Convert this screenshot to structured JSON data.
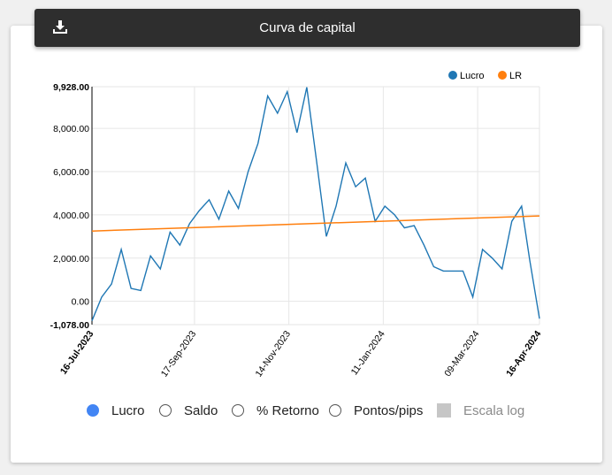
{
  "header": {
    "title": "Curva de capital",
    "download_icon": "download-icon"
  },
  "chart_data": {
    "type": "line",
    "legend": [
      "Lucro",
      "LR"
    ],
    "legend_placement": "top-right",
    "colors": {
      "Lucro": "#1f77b4",
      "LR": "#ff7f0e"
    },
    "y_ticks": [
      "9,928.00",
      "8,000.00",
      "6,000.00",
      "4,000.00",
      "2,000.00",
      "0.00",
      "-1,078.00"
    ],
    "ylim": [
      -1078,
      9928
    ],
    "x_ticks": [
      "16-Jul-2023",
      "17-Sep-2023",
      "14-Nov-2023",
      "11-Jan-2024",
      "09-Mar-2024",
      "16-Apr-2024"
    ],
    "xlim": [
      "2023-07-16",
      "2024-04-16"
    ],
    "grid": true,
    "series": [
      {
        "name": "Lucro",
        "x": [
          "2023-07-16",
          "2023-07-22",
          "2023-07-28",
          "2023-08-03",
          "2023-08-09",
          "2023-08-15",
          "2023-08-21",
          "2023-08-27",
          "2023-09-02",
          "2023-09-08",
          "2023-09-14",
          "2023-09-20",
          "2023-09-26",
          "2023-10-02",
          "2023-10-08",
          "2023-10-14",
          "2023-10-20",
          "2023-10-26",
          "2023-11-01",
          "2023-11-07",
          "2023-11-13",
          "2023-11-19",
          "2023-11-25",
          "2023-12-01",
          "2023-12-07",
          "2023-12-13",
          "2023-12-19",
          "2023-12-25",
          "2023-12-31",
          "2024-01-06",
          "2024-01-12",
          "2024-01-18",
          "2024-01-24",
          "2024-01-30",
          "2024-02-05",
          "2024-02-11",
          "2024-02-17",
          "2024-02-23",
          "2024-02-29",
          "2024-03-06",
          "2024-03-12",
          "2024-03-18",
          "2024-03-24",
          "2024-03-30",
          "2024-04-05",
          "2024-04-10",
          "2024-04-16"
        ],
        "values": [
          -900,
          200,
          800,
          2400,
          600,
          500,
          2100,
          1500,
          3200,
          2600,
          3600,
          4200,
          4700,
          3800,
          5100,
          4300,
          6000,
          7300,
          9500,
          8700,
          9700,
          7800,
          9900,
          6500,
          3000,
          4400,
          6400,
          5300,
          5700,
          3700,
          4400,
          4000,
          3400,
          3500,
          2600,
          1600,
          1400,
          1400,
          1400,
          200,
          2400,
          2000,
          1500,
          3700,
          4400,
          1900,
          -800
        ],
        "description": "Lucro (profit) equity curve"
      },
      {
        "name": "LR",
        "x": [
          "2023-07-16",
          "2024-04-16"
        ],
        "values": [
          3250,
          3950
        ]
      }
    ]
  },
  "controls": {
    "options": [
      {
        "label": "Lucro",
        "selected": true
      },
      {
        "label": "Saldo",
        "selected": false
      },
      {
        "label": "% Retorno",
        "selected": false
      },
      {
        "label": "Pontos/pips",
        "selected": false
      }
    ],
    "log_scale": {
      "label": "Escala log",
      "checked": false,
      "disabled": true
    }
  }
}
